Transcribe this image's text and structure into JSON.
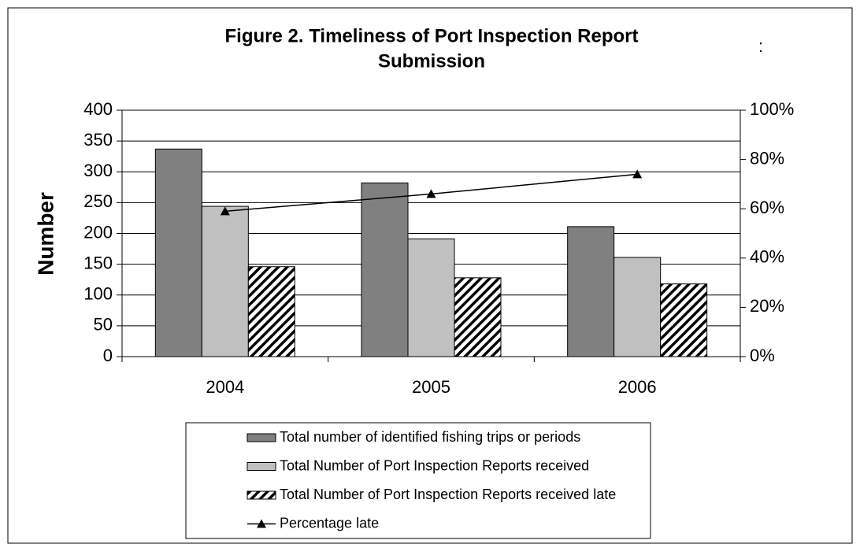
{
  "chart_data": {
    "type": "bar",
    "title": "Figure 2. Timeliness of Port Inspection Report",
    "title_line2": "Submission",
    "annotation": ":",
    "y_label": "Number",
    "categories": [
      "2004",
      "2005",
      "2006"
    ],
    "series": [
      {
        "name": "Total number of identified fishing trips or periods",
        "color": "#808080",
        "values": [
          337,
          282,
          211
        ]
      },
      {
        "name": "Total Number of Port Inspection Reports received",
        "color": "#c0c0c0",
        "values": [
          244,
          191,
          161
        ]
      },
      {
        "name": "Total Number of Port Inspection Reports received late",
        "color": "#000000",
        "hatch": true,
        "values": [
          146,
          128,
          118
        ]
      },
      {
        "name": "Percentage late",
        "type": "line",
        "axis": "y2",
        "color": "#000000",
        "values": [
          59,
          66,
          74
        ]
      }
    ],
    "ylim": [
      0,
      400
    ],
    "yticks": [
      0,
      50,
      100,
      150,
      200,
      250,
      300,
      350,
      400
    ],
    "y2lim": [
      0,
      100
    ],
    "y2ticks": [
      {
        "value": 0,
        "label": "0%"
      },
      {
        "value": 20,
        "label": "20%"
      },
      {
        "value": 40,
        "label": "40%"
      },
      {
        "value": 60,
        "label": "60%"
      },
      {
        "value": 80,
        "label": "80%"
      },
      {
        "value": 100,
        "label": "100%"
      }
    ],
    "grid": true,
    "legend": "bottom"
  }
}
